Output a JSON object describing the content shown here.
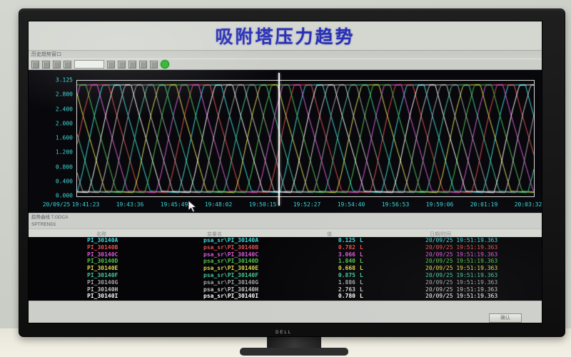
{
  "photo": {
    "monitor_brand": "DELL"
  },
  "screen": {
    "page_title": "吸附塔压力趋势",
    "window_title": "历史趋势窗口",
    "info_line_1": "趋势曲线 T.GDCA",
    "info_line_2": "SPTREND1"
  },
  "toolbar": {
    "icons": [
      {
        "name": "new-icon",
        "kind": "box"
      },
      {
        "name": "open-icon",
        "kind": "box"
      },
      {
        "name": "save-icon",
        "kind": "box"
      },
      {
        "name": "print-icon",
        "kind": "box"
      },
      {
        "name": "curve-select-dropdown",
        "kind": "dropdown"
      },
      {
        "name": "zoom-in-icon",
        "kind": "box"
      },
      {
        "name": "zoom-out-icon",
        "kind": "box"
      },
      {
        "name": "pan-icon",
        "kind": "box"
      },
      {
        "name": "cursor-mode-icon",
        "kind": "box"
      },
      {
        "name": "stop-icon",
        "kind": "box"
      },
      {
        "name": "run-icon",
        "kind": "green-dot"
      }
    ]
  },
  "chart_data": {
    "type": "line",
    "title": "吸附塔压力趋势",
    "xlabel": "",
    "ylabel": "",
    "ylim": [
      0,
      3.125
    ],
    "grid": false,
    "legend_position": "table-below",
    "y_ticks": [
      "3.125",
      "2.800",
      "2.400",
      "2.000",
      "1.600",
      "1.200",
      "0.800",
      "0.400",
      "0.000"
    ],
    "x_date": "20/09/25",
    "x_ticks": [
      "19:41:23",
      "19:43:36",
      "19:45:49",
      "19:48:02",
      "19:50:15",
      "19:52:27",
      "19:54:40",
      "19:56:53",
      "19:59:06",
      "20:01:19",
      "20:03:32"
    ],
    "cursor_position_fraction": 0.442,
    "cycle_period_fraction": 0.222,
    "cycle_keypoints": [
      [
        0,
        0.1
      ],
      [
        0.05,
        0.6
      ],
      [
        0.11,
        1.4
      ],
      [
        0.18,
        2.3
      ],
      [
        0.25,
        3.0
      ],
      [
        0.42,
        3.02
      ],
      [
        0.49,
        2.3
      ],
      [
        0.57,
        1.55
      ],
      [
        0.65,
        0.8
      ],
      [
        0.72,
        0.14
      ],
      [
        1,
        0.1
      ]
    ],
    "series": [
      {
        "name": "PI_30140A",
        "color": "#3fd9d9",
        "phase": 0.0
      },
      {
        "name": "PI_30140B",
        "color": "#e05050",
        "phase": 0.111
      },
      {
        "name": "PI_30140C",
        "color": "#da5ada",
        "phase": 0.222
      },
      {
        "name": "PI_30140D",
        "color": "#4ec44e",
        "phase": 0.333
      },
      {
        "name": "PI_30140E",
        "color": "#d9d950",
        "phase": 0.444
      },
      {
        "name": "PI_30140F",
        "color": "#46c795",
        "phase": 0.556
      },
      {
        "name": "PI_30140G",
        "color": "#a2a2a2",
        "phase": 0.667
      },
      {
        "name": "PI_30140H",
        "color": "#c4c4c4",
        "phase": 0.778
      },
      {
        "name": "PI_30140I",
        "color": "#f5f5f5",
        "phase": 0.889
      }
    ]
  },
  "table": {
    "headers": [
      "名称",
      "变量名",
      "值",
      "日期/时间"
    ],
    "rows": [
      {
        "tag": "PI_30140A",
        "variable": "psa_sr\\PI_30140A",
        "value": "0.125",
        "unit": "L",
        "time": "20/09/25 19:51:19.363",
        "color": "#3fd9d9"
      },
      {
        "tag": "PI_30140B",
        "variable": "psa_sr\\PI_30140B",
        "value": "0.782",
        "unit": "L",
        "time": "20/09/25 19:51:19.363",
        "color": "#e05050"
      },
      {
        "tag": "PI_30140C",
        "variable": "psa_sr\\PI_30140C",
        "value": "3.066",
        "unit": "L",
        "time": "20/09/25 19:51:19.363",
        "color": "#da5ada"
      },
      {
        "tag": "PI_30140D",
        "variable": "psa_sr\\PI_30140D",
        "value": "1.840",
        "unit": "L",
        "time": "20/09/25 19:51:19.363",
        "color": "#4ec44e"
      },
      {
        "tag": "PI_30140E",
        "variable": "psa_sr\\PI_30140E",
        "value": "0.668",
        "unit": "L",
        "time": "20/09/25 19:51:19.363",
        "color": "#d9d950"
      },
      {
        "tag": "PI_30140F",
        "variable": "psa_sr\\PI_30140F",
        "value": "0.875",
        "unit": "L",
        "time": "20/09/25 19:51:19.363",
        "color": "#46c795"
      },
      {
        "tag": "PI_30140G",
        "variable": "psa_sr\\PI_30140G",
        "value": "1.886",
        "unit": "L",
        "time": "20/09/25 19:51:19.363",
        "color": "#a2a2a2"
      },
      {
        "tag": "PI_30140H",
        "variable": "psa_sr\\PI_30140H",
        "value": "2.763",
        "unit": "L",
        "time": "20/09/25 19:51:19.363",
        "color": "#c4c4c4"
      },
      {
        "tag": "PI_30140I",
        "variable": "psa_sr\\PI_30140I",
        "value": "0.780",
        "unit": "L",
        "time": "20/09/25 19:51:19.363",
        "color": "#ffffff"
      }
    ]
  },
  "footer": {
    "button_label": "确认"
  }
}
